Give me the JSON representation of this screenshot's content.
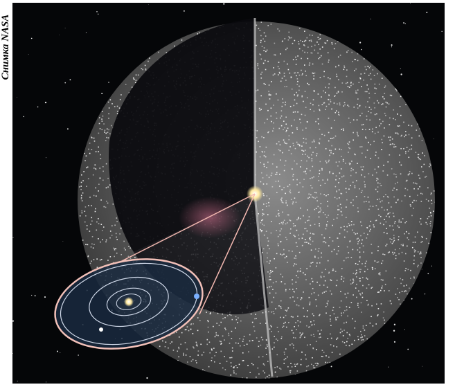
{
  "caption": "Снимка NASA"
}
